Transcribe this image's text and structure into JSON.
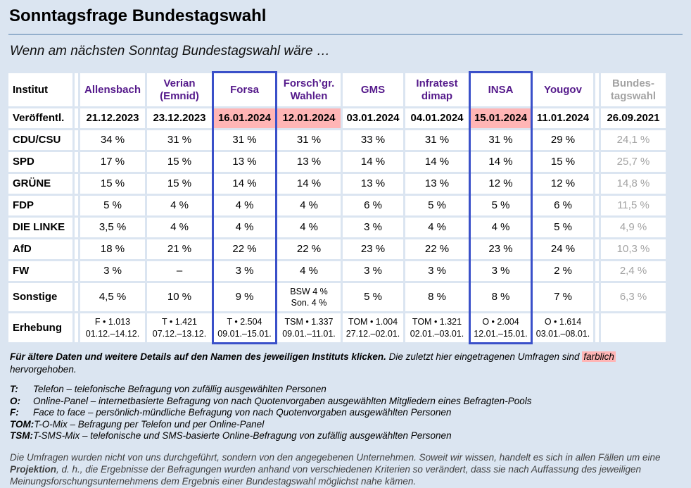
{
  "page": {
    "title": "Sonntagsfrage Bundestagswahl",
    "subtitle": "Wenn am nächsten Sonntag Bundestagswahl wäre …"
  },
  "colors": {
    "page_background": "#dbe5f1",
    "cell_background": "#ffffff",
    "highlight_pink": "#ffb5b5",
    "highlight_box_blue": "#3a50c9",
    "institute_link_purple": "#551a8b",
    "muted_gray": "#a3a3a3",
    "title_rule_blue": "#4d7ba9"
  },
  "table": {
    "corner_label": "Institut",
    "row_labels": [
      "Veröffentl.",
      "CDU/CSU",
      "SPD",
      "GRÜNE",
      "FDP",
      "DIE LINKE",
      "AfD",
      "FW",
      "Sonstige",
      "Erhebung"
    ],
    "columns": [
      {
        "name": [
          "Allensbach"
        ],
        "muted": false,
        "boxed": false,
        "date": "21.12.2023",
        "date_highlight": false,
        "values": [
          "34 %",
          "17 %",
          "15 %",
          "5 %",
          "3,5 %",
          "18 %",
          "3 %",
          "4,5 %"
        ],
        "erhebung": [
          "F • 1.013",
          "01.12.–14.12."
        ]
      },
      {
        "name": [
          "Verian",
          "(Emnid)"
        ],
        "muted": false,
        "boxed": false,
        "date": "23.12.2023",
        "date_highlight": false,
        "values": [
          "31 %",
          "15 %",
          "15 %",
          "4 %",
          "4 %",
          "21 %",
          "–",
          "10 %"
        ],
        "erhebung": [
          "T • 1.421",
          "07.12.–13.12."
        ]
      },
      {
        "name": [
          "Forsa"
        ],
        "muted": false,
        "boxed": true,
        "date": "16.01.2024",
        "date_highlight": true,
        "values": [
          "31 %",
          "13 %",
          "14 %",
          "4 %",
          "4 %",
          "22 %",
          "3 %",
          "9 %"
        ],
        "erhebung": [
          "T • 2.504",
          "09.01.–15.01."
        ]
      },
      {
        "name": [
          "Forsch’gr.",
          "Wahlen"
        ],
        "muted": false,
        "boxed": false,
        "date": "12.01.2024",
        "date_highlight": true,
        "values": [
          "31 %",
          "13 %",
          "14 %",
          "4 %",
          "4 %",
          "22 %",
          "4 %",
          [
            "BSW 4 %",
            "Son. 4 %"
          ]
        ],
        "erhebung": [
          "TSM • 1.337",
          "09.01.–11.01."
        ]
      },
      {
        "name": [
          "GMS"
        ],
        "muted": false,
        "boxed": false,
        "date": "03.01.2024",
        "date_highlight": false,
        "values": [
          "33 %",
          "14 %",
          "13 %",
          "6 %",
          "3 %",
          "23 %",
          "3 %",
          "5 %"
        ],
        "erhebung": [
          "TOM • 1.004",
          "27.12.–02.01."
        ]
      },
      {
        "name": [
          "Infratest",
          "dimap"
        ],
        "muted": false,
        "boxed": false,
        "date": "04.01.2024",
        "date_highlight": false,
        "values": [
          "31 %",
          "14 %",
          "13 %",
          "5 %",
          "4 %",
          "22 %",
          "3 %",
          "8 %"
        ],
        "erhebung": [
          "TOM • 1.321",
          "02.01.–03.01."
        ]
      },
      {
        "name": [
          "INSA"
        ],
        "muted": false,
        "boxed": true,
        "date": "15.01.2024",
        "date_highlight": true,
        "values": [
          "31 %",
          "14 %",
          "12 %",
          "5 %",
          "4 %",
          "23 %",
          "3 %",
          "8 %"
        ],
        "erhebung": [
          "O • 2.004",
          "12.01.–15.01."
        ]
      },
      {
        "name": [
          "Yougov"
        ],
        "muted": false,
        "boxed": false,
        "date": "11.01.2024",
        "date_highlight": false,
        "values": [
          "29 %",
          "15 %",
          "12 %",
          "6 %",
          "5 %",
          "24 %",
          "2 %",
          "7 %"
        ],
        "erhebung": [
          "O • 1.614",
          "03.01.–08.01."
        ]
      },
      {
        "name": [
          "Bundes-",
          "tagswahl"
        ],
        "muted": true,
        "boxed": false,
        "date": "26.09.2021",
        "date_highlight": false,
        "values": [
          "24,1 %",
          "25,7 %",
          "14,8 %",
          "11,5 %",
          "4,9 %",
          "10,3 %",
          "2,4 %",
          "6,3 %"
        ],
        "erhebung": []
      }
    ]
  },
  "notes": {
    "bold": "Für ältere Daten und weitere Details auf den Namen des jeweiligen Instituts klicken.",
    "pre": " Die zuletzt hier eingetragenen Umfragen sind ",
    "word": "farblich",
    "post": " hervorgehoben."
  },
  "legend": [
    {
      "abbr": "T:",
      "text": "Telefon – telefonische Befragung von zufällig ausgewählten Personen"
    },
    {
      "abbr": "O:",
      "text": "Online-Panel – internetbasierte Befragung von nach Quotenvorgaben ausgewählten Mitgliedern eines Befragten-Pools"
    },
    {
      "abbr": "F:",
      "text": "Face to face – persönlich-mündliche Befragung von nach Quotenvorgaben ausgewählten Personen"
    },
    {
      "abbr": "TOM:",
      "text": "T-O-Mix – Befragung per Telefon und per Online-Panel"
    },
    {
      "abbr": "TSM:",
      "text": "T-SMS-Mix – telefonische und SMS-basierte Online-Befragung von zufällig ausgewählten Personen"
    }
  ],
  "disclaimer": {
    "pre": "Die Umfragen wurden nicht von uns durchgeführt, sondern von den angegebenen Unternehmen. Soweit wir wissen, handelt es sich in allen Fällen um eine ",
    "bold": "Projektion",
    "post": ", d. h., die Ergebnisse der Befragungen wurden anhand von verschiedenen Kriterien so verändert, dass sie nach Auffassung des jeweiligen Meinungsforschungsunternehmens dem Ergebnis einer Bundestagswahl möglichst nahe kämen."
  }
}
